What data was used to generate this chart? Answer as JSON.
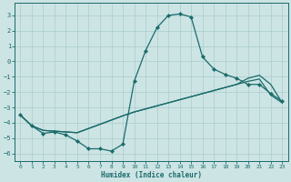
{
  "xlabel": "Humidex (Indice chaleur)",
  "xlim": [
    -0.5,
    23.5
  ],
  "ylim": [
    -6.5,
    3.8
  ],
  "yticks": [
    3,
    2,
    1,
    0,
    -1,
    -2,
    -3,
    -4,
    -5,
    -6
  ],
  "xticks": [
    0,
    1,
    2,
    3,
    4,
    5,
    6,
    7,
    8,
    9,
    10,
    11,
    12,
    13,
    14,
    15,
    16,
    17,
    18,
    19,
    20,
    21,
    22,
    23
  ],
  "background_color": "#cde4e4",
  "grid_color": "#a8cccc",
  "line_color": "#1a6b6b",
  "line1_x": [
    0,
    1,
    2,
    3,
    4,
    5,
    6,
    7,
    8,
    9,
    10,
    11,
    12,
    13,
    14,
    15,
    16,
    17,
    18,
    19,
    20,
    21,
    22,
    23
  ],
  "line1_y": [
    -3.5,
    -4.2,
    -4.7,
    -4.6,
    -4.8,
    -5.2,
    -5.7,
    -5.7,
    -5.85,
    -5.4,
    -1.3,
    0.7,
    2.2,
    3.0,
    3.1,
    2.9,
    0.3,
    -0.5,
    -0.85,
    -1.1,
    -1.5,
    -1.5,
    -2.1,
    -2.6
  ],
  "line2_x": [
    0,
    1,
    2,
    3,
    4,
    5,
    9,
    10,
    11,
    12,
    13,
    14,
    15,
    16,
    17,
    18,
    19,
    20,
    21,
    22,
    23
  ],
  "line2_y": [
    -3.5,
    -4.2,
    -4.5,
    -4.55,
    -4.6,
    -4.65,
    -3.55,
    -3.3,
    -3.1,
    -2.9,
    -2.7,
    -2.5,
    -2.3,
    -2.1,
    -1.9,
    -1.7,
    -1.5,
    -1.3,
    -1.15,
    -2.2,
    -2.7
  ],
  "line3_x": [
    0,
    1,
    2,
    3,
    4,
    5,
    9,
    10,
    11,
    12,
    13,
    14,
    15,
    16,
    17,
    18,
    19,
    20,
    21,
    22,
    23
  ],
  "line3_y": [
    -3.5,
    -4.2,
    -4.5,
    -4.55,
    -4.6,
    -4.65,
    -3.55,
    -3.3,
    -3.1,
    -2.9,
    -2.7,
    -2.5,
    -2.3,
    -2.1,
    -1.9,
    -1.7,
    -1.5,
    -1.1,
    -0.9,
    -1.5,
    -2.7
  ]
}
